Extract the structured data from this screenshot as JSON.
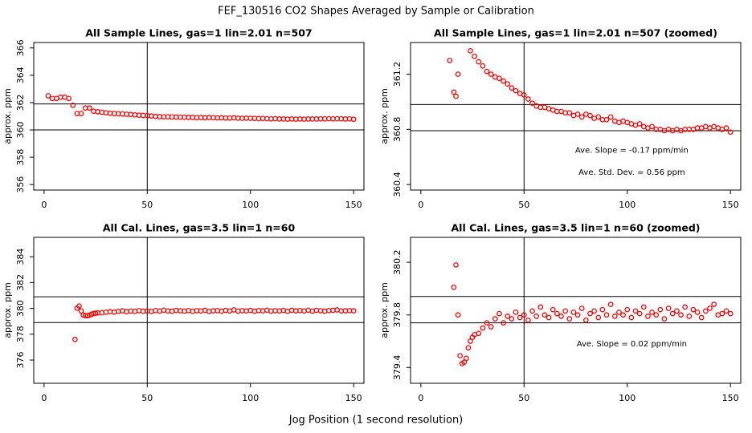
{
  "title": "FEF_130516  CO2 Shapes Averaged by Sample or Calibration",
  "xlabel": "Jog Position (1 second resolution)",
  "chart_data": [
    {
      "type": "scatter",
      "title": "All Sample Lines, gas=1 lin=2.01 n=507",
      "ylabel": "approx. ppm",
      "xlim": [
        -5,
        155
      ],
      "xticks": [
        0,
        50,
        100,
        150
      ],
      "ylim": [
        355.6,
        366.4
      ],
      "yticks": [
        356,
        358,
        360,
        362,
        364,
        366
      ],
      "hlines": [
        361.9,
        360.0
      ],
      "vlines": [
        50
      ],
      "series": [
        {
          "color": "#ff0000",
          "x": [
            2,
            4,
            6,
            8,
            10,
            12,
            14,
            16,
            18,
            20,
            22,
            24,
            26,
            28,
            30,
            32,
            34,
            36,
            38,
            40,
            42,
            44,
            46,
            48,
            50,
            52,
            54,
            56,
            58,
            60,
            62,
            64,
            66,
            68,
            70,
            72,
            74,
            76,
            78,
            80,
            82,
            84,
            86,
            88,
            90,
            92,
            94,
            96,
            98,
            100,
            102,
            104,
            106,
            108,
            110,
            112,
            114,
            116,
            118,
            120,
            122,
            124,
            126,
            128,
            130,
            132,
            134,
            136,
            138,
            140,
            142,
            144,
            146,
            148,
            150
          ],
          "values": [
            362.5,
            362.3,
            362.3,
            362.4,
            362.4,
            362.3,
            361.8,
            361.2,
            361.2,
            361.6,
            361.6,
            361.37,
            361.33,
            361.29,
            361.26,
            361.22,
            361.2,
            361.18,
            361.17,
            361.15,
            361.13,
            361.1,
            361.08,
            361.06,
            361.05,
            361.02,
            360.99,
            360.97,
            360.96,
            360.96,
            360.95,
            360.94,
            360.93,
            360.93,
            360.92,
            360.92,
            360.9,
            360.91,
            360.89,
            360.91,
            360.9,
            360.88,
            360.89,
            360.87,
            360.87,
            360.89,
            360.86,
            360.85,
            360.86,
            360.85,
            360.84,
            360.83,
            360.84,
            360.82,
            360.81,
            360.82,
            360.8,
            360.8,
            360.79,
            360.8,
            360.79,
            360.8,
            360.79,
            360.8,
            360.8,
            360.8,
            360.81,
            360.81,
            360.82,
            360.81,
            360.82,
            360.81,
            360.8,
            360.81,
            360.78
          ]
        }
      ]
    },
    {
      "type": "scatter",
      "title": "All Sample Lines, gas=1 lin=2.01 n=507 (zoomed)",
      "ylabel": "approx. ppm",
      "xlim": [
        -5,
        155
      ],
      "xticks": [
        0,
        50,
        100,
        150
      ],
      "ylim": [
        360.36,
        361.43
      ],
      "yticks": [
        360.4,
        360.8,
        361.2
      ],
      "hlines": [
        360.98,
        360.79
      ],
      "vlines": [
        50
      ],
      "annotations": [
        "Ave. Slope =  -0.17  ppm/min",
        "Ave. Std. Dev. =  0.56  ppm"
      ],
      "series": [
        {
          "color": "#ff0000",
          "x": [
            14,
            16,
            17,
            18,
            24,
            26,
            28,
            30,
            32,
            34,
            36,
            38,
            40,
            42,
            44,
            46,
            48,
            50,
            52,
            54,
            56,
            58,
            60,
            62,
            64,
            66,
            68,
            70,
            72,
            74,
            76,
            78,
            80,
            82,
            84,
            86,
            88,
            90,
            92,
            94,
            96,
            98,
            100,
            102,
            104,
            106,
            108,
            110,
            112,
            114,
            116,
            118,
            120,
            122,
            124,
            126,
            128,
            130,
            132,
            134,
            136,
            138,
            140,
            142,
            144,
            146,
            148,
            150
          ],
          "values": [
            361.3,
            361.07,
            361.04,
            361.2,
            361.37,
            361.33,
            361.29,
            361.26,
            361.22,
            361.2,
            361.18,
            361.17,
            361.15,
            361.13,
            361.1,
            361.08,
            361.06,
            361.05,
            361.02,
            360.99,
            360.97,
            360.96,
            360.96,
            360.95,
            360.94,
            360.93,
            360.93,
            360.92,
            360.92,
            360.9,
            360.91,
            360.89,
            360.91,
            360.9,
            360.88,
            360.89,
            360.87,
            360.87,
            360.89,
            360.86,
            360.85,
            360.86,
            360.85,
            360.84,
            360.83,
            360.84,
            360.82,
            360.81,
            360.82,
            360.8,
            360.8,
            360.79,
            360.8,
            360.79,
            360.8,
            360.79,
            360.8,
            360.8,
            360.8,
            360.81,
            360.81,
            360.82,
            360.81,
            360.82,
            360.81,
            360.8,
            360.81,
            360.78
          ]
        }
      ]
    },
    {
      "type": "scatter",
      "title": "All Cal. Lines, gas=3.5 lin=1 n=60",
      "ylabel": "approx. ppm",
      "xlim": [
        -5,
        155
      ],
      "xticks": [
        0,
        50,
        100,
        150
      ],
      "ylim": [
        374.2,
        385.5
      ],
      "yticks": [
        376,
        378,
        380,
        382,
        384
      ],
      "hlines": [
        380.9,
        378.9
      ],
      "vlines": [
        50
      ],
      "series": [
        {
          "color": "#ff0000",
          "x": [
            15,
            16,
            17,
            18,
            19,
            20,
            21,
            22,
            23,
            24,
            25,
            26,
            28,
            30,
            32,
            34,
            36,
            38,
            40,
            42,
            44,
            46,
            48,
            50,
            52,
            54,
            56,
            58,
            60,
            62,
            64,
            66,
            68,
            70,
            72,
            74,
            76,
            78,
            80,
            82,
            84,
            86,
            88,
            90,
            92,
            94,
            96,
            98,
            100,
            102,
            104,
            106,
            108,
            110,
            112,
            114,
            116,
            118,
            120,
            122,
            124,
            126,
            128,
            130,
            132,
            134,
            136,
            138,
            140,
            142,
            144,
            146,
            148,
            150
          ],
          "values": [
            377.6,
            380.01,
            380.18,
            379.8,
            379.49,
            379.43,
            379.44,
            379.47,
            379.55,
            379.6,
            379.63,
            379.65,
            379.66,
            379.7,
            379.74,
            379.71,
            379.77,
            379.81,
            379.74,
            379.79,
            379.77,
            379.82,
            379.78,
            379.8,
            379.76,
            379.83,
            379.79,
            379.86,
            379.8,
            379.78,
            379.84,
            379.81,
            379.79,
            379.83,
            379.77,
            379.82,
            379.8,
            379.85,
            379.76,
            379.81,
            379.83,
            379.78,
            379.84,
            379.8,
            379.88,
            379.79,
            379.82,
            379.8,
            379.84,
            379.78,
            379.83,
            379.81,
            379.86,
            379.79,
            379.82,
            379.8,
            379.84,
            379.77,
            379.85,
            379.81,
            379.83,
            379.8,
            379.86,
            379.79,
            379.84,
            379.82,
            379.78,
            379.83,
            379.85,
            379.88,
            379.8,
            379.81,
            379.83,
            379.81
          ]
        }
      ]
    },
    {
      "type": "scatter",
      "title": "All Cal. Lines, gas=3.5 lin=1 n=60 (zoomed)",
      "ylabel": "approx. ppm",
      "xlim": [
        -5,
        155
      ],
      "xticks": [
        0,
        50,
        100,
        150
      ],
      "ylim": [
        379.28,
        380.39
      ],
      "yticks": [
        379.4,
        379.8,
        380.2
      ],
      "hlines": [
        379.94,
        379.74
      ],
      "vlines": [
        50
      ],
      "annotations": [
        "Ave. Slope =  0.02  ppm/min"
      ],
      "series": [
        {
          "color": "#ff0000",
          "x": [
            16,
            17,
            18,
            19,
            20,
            21,
            22,
            23,
            24,
            25,
            26,
            28,
            30,
            32,
            34,
            36,
            38,
            40,
            42,
            44,
            46,
            48,
            50,
            52,
            54,
            56,
            58,
            60,
            62,
            64,
            66,
            68,
            70,
            72,
            74,
            76,
            78,
            80,
            82,
            84,
            86,
            88,
            90,
            92,
            94,
            96,
            98,
            100,
            102,
            104,
            106,
            108,
            110,
            112,
            114,
            116,
            118,
            120,
            122,
            124,
            126,
            128,
            130,
            132,
            134,
            136,
            138,
            140,
            142,
            144,
            146,
            148,
            150
          ],
          "values": [
            380.01,
            380.18,
            379.8,
            379.49,
            379.43,
            379.44,
            379.47,
            379.55,
            379.6,
            379.63,
            379.65,
            379.66,
            379.7,
            379.74,
            379.71,
            379.77,
            379.81,
            379.74,
            379.79,
            379.77,
            379.82,
            379.78,
            379.8,
            379.76,
            379.83,
            379.79,
            379.86,
            379.8,
            379.78,
            379.84,
            379.81,
            379.79,
            379.83,
            379.77,
            379.82,
            379.8,
            379.85,
            379.76,
            379.81,
            379.83,
            379.78,
            379.84,
            379.8,
            379.88,
            379.79,
            379.82,
            379.8,
            379.84,
            379.78,
            379.83,
            379.81,
            379.86,
            379.79,
            379.82,
            379.8,
            379.84,
            379.77,
            379.85,
            379.81,
            379.83,
            379.8,
            379.86,
            379.79,
            379.84,
            379.82,
            379.78,
            379.83,
            379.85,
            379.88,
            379.8,
            379.81,
            379.83,
            379.81
          ]
        }
      ]
    }
  ]
}
